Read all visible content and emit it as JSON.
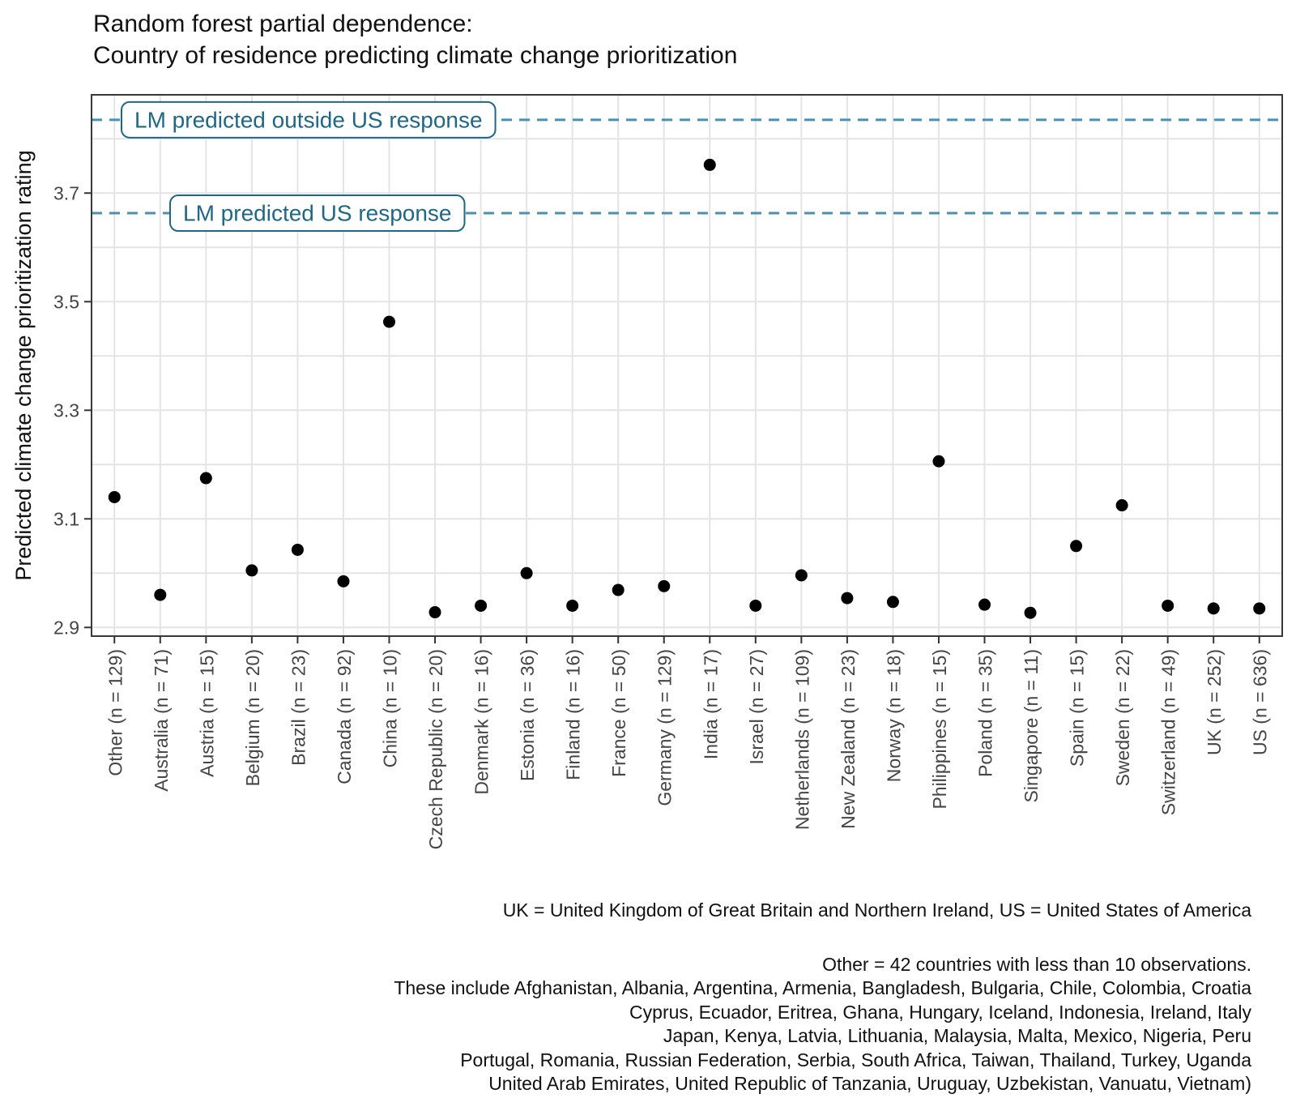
{
  "page": {
    "title_line1": "Random forest partial dependence:",
    "title_line2": "Country of residence predicting climate change prioritization"
  },
  "chart_data": {
    "type": "scatter",
    "title": "Random forest partial dependence: Country of residence predicting climate change prioritization",
    "xlabel": "",
    "ylabel": "Predicted climate change prioritization rating",
    "ylim": [
      2.884,
      3.881
    ],
    "yticks": [
      2.9,
      3.1,
      3.3,
      3.5,
      3.7
    ],
    "ytick_labels": [
      "2.9",
      "3.1",
      "3.3",
      "3.5",
      "3.7"
    ],
    "minor_grid_values": [
      2.9,
      3.0,
      3.1,
      3.2,
      3.3,
      3.4,
      3.5,
      3.6,
      3.7,
      3.8
    ],
    "grid": true,
    "legend": "none",
    "point_color": "#000000",
    "categories": [
      {
        "country": "Other",
        "n": 129,
        "tick_label": "Other (n = 129)",
        "value": 3.14
      },
      {
        "country": "Australia",
        "n": 71,
        "tick_label": "Australia (n = 71)",
        "value": 2.96
      },
      {
        "country": "Austria",
        "n": 15,
        "tick_label": "Austria (n = 15)",
        "value": 3.175
      },
      {
        "country": "Belgium",
        "n": 20,
        "tick_label": "Belgium (n = 20)",
        "value": 3.005
      },
      {
        "country": "Brazil",
        "n": 23,
        "tick_label": "Brazil (n = 23)",
        "value": 3.043
      },
      {
        "country": "Canada",
        "n": 92,
        "tick_label": "Canada (n = 92)",
        "value": 2.985
      },
      {
        "country": "China",
        "n": 10,
        "tick_label": "China (n = 10)",
        "value": 3.463
      },
      {
        "country": "Czech Republic",
        "n": 20,
        "tick_label": "Czech Republic (n = 20)",
        "value": 2.928
      },
      {
        "country": "Denmark",
        "n": 16,
        "tick_label": "Denmark (n = 16)",
        "value": 2.94
      },
      {
        "country": "Estonia",
        "n": 36,
        "tick_label": "Estonia (n = 36)",
        "value": 3.0
      },
      {
        "country": "Finland",
        "n": 16,
        "tick_label": "Finland (n = 16)",
        "value": 2.94
      },
      {
        "country": "France",
        "n": 50,
        "tick_label": "France (n = 50)",
        "value": 2.969
      },
      {
        "country": "Germany",
        "n": 129,
        "tick_label": "Germany (n = 129)",
        "value": 2.976
      },
      {
        "country": "India",
        "n": 17,
        "tick_label": "India (n = 17)",
        "value": 3.752
      },
      {
        "country": "Israel",
        "n": 27,
        "tick_label": "Israel (n = 27)",
        "value": 2.94
      },
      {
        "country": "Netherlands",
        "n": 109,
        "tick_label": "Netherlands (n = 109)",
        "value": 2.996
      },
      {
        "country": "New Zealand",
        "n": 23,
        "tick_label": "New Zealand (n = 23)",
        "value": 2.954
      },
      {
        "country": "Norway",
        "n": 18,
        "tick_label": "Norway (n = 18)",
        "value": 2.947
      },
      {
        "country": "Philippines",
        "n": 15,
        "tick_label": "Philippines (n = 15)",
        "value": 3.206
      },
      {
        "country": "Poland",
        "n": 35,
        "tick_label": "Poland (n = 35)",
        "value": 2.942
      },
      {
        "country": "Singapore",
        "n": 11,
        "tick_label": "Singapore (n = 11)",
        "value": 2.927
      },
      {
        "country": "Spain",
        "n": 15,
        "tick_label": "Spain (n = 15)",
        "value": 3.05
      },
      {
        "country": "Sweden",
        "n": 22,
        "tick_label": "Sweden (n = 22)",
        "value": 3.125
      },
      {
        "country": "Switzerland",
        "n": 49,
        "tick_label": "Switzerland (n = 49)",
        "value": 2.94
      },
      {
        "country": "UK",
        "n": 252,
        "tick_label": "UK (n = 252)",
        "value": 2.935
      },
      {
        "country": "US",
        "n": 636,
        "tick_label": "US (n = 636)",
        "value": 2.935
      }
    ],
    "reference_lines": [
      {
        "id": "lm-outside-us",
        "label": "LM predicted outside US response",
        "value": 3.835,
        "style": "dashed",
        "color": "#4791B7",
        "label_color": "#1F6787"
      },
      {
        "id": "lm-us",
        "label": "LM predicted US response",
        "value": 3.663,
        "style": "dashed",
        "color": "#4791B7",
        "label_color": "#1F6787"
      }
    ]
  },
  "captions": {
    "abbrev": "UK = United Kingdom of Great Britain and Northern Ireland, US = United States of America",
    "other_note_lines": [
      "Other = 42 countries with less than 10 observations.",
      "These include Afghanistan, Albania, Argentina, Armenia, Bangladesh, Bulgaria, Chile, Colombia, Croatia",
      "Cyprus, Ecuador, Eritrea, Ghana, Hungary, Iceland, Indonesia, Ireland, Italy",
      "Japan, Kenya, Latvia, Lithuania, Malaysia, Malta, Mexico, Nigeria, Peru",
      "Portugal, Romania, Russian Federation, Serbia, South Africa, Taiwan, Thailand, Turkey, Uganda",
      "United Arab Emirates, United Republic of Tanzania, Uruguay, Uzbekistan, Vanuatu, Vietnam)"
    ]
  }
}
